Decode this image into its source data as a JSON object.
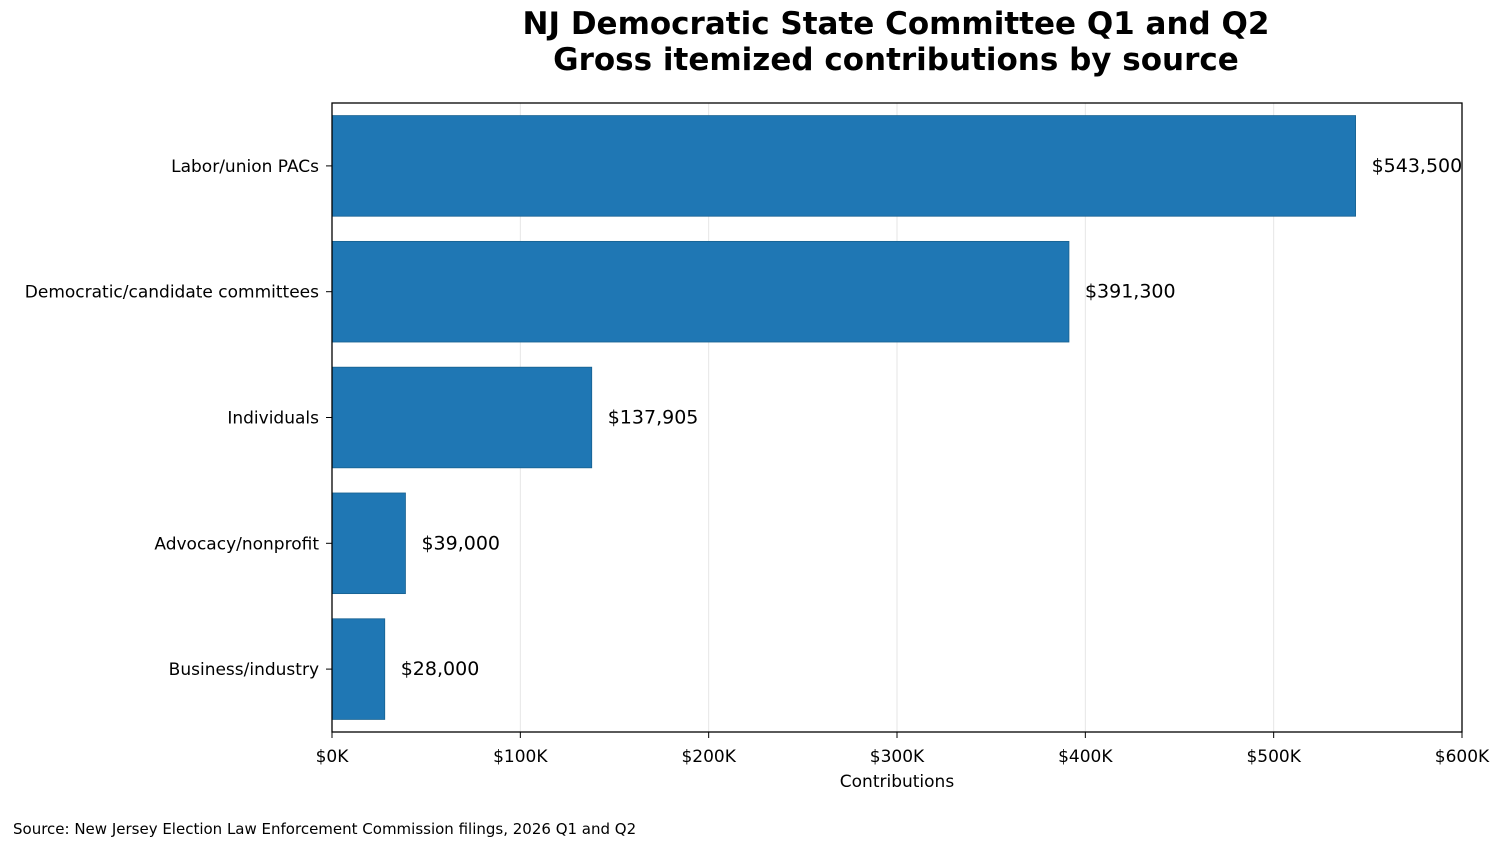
{
  "chart_data": {
    "type": "bar",
    "orientation": "horizontal",
    "title_line1": "NJ Democratic State Committee Q1 and Q2",
    "title_line2": "Gross itemized contributions by source",
    "xlabel": "Contributions",
    "ylabel": "",
    "categories": [
      "Labor/union PACs",
      "Democratic/candidate committees",
      "Individuals",
      "Advocacy/nonprofit",
      "Business/industry"
    ],
    "values": [
      543500,
      391300,
      137905,
      39000,
      28000
    ],
    "value_labels": [
      "$543,500",
      "$391,300",
      "$137,905",
      "$39,000",
      "$28,000"
    ],
    "xlim": [
      0,
      600000
    ],
    "xticks": [
      0,
      100000,
      200000,
      300000,
      400000,
      500000,
      600000
    ],
    "xtick_labels": [
      "$0K",
      "$100K",
      "$200K",
      "$300K",
      "$400K",
      "$500K",
      "$600K"
    ],
    "grid": "vertical",
    "bar_color": "#1f77b4"
  },
  "source_note": "Source: New Jersey Election Law Enforcement Commission filings, 2026 Q1 and Q2"
}
